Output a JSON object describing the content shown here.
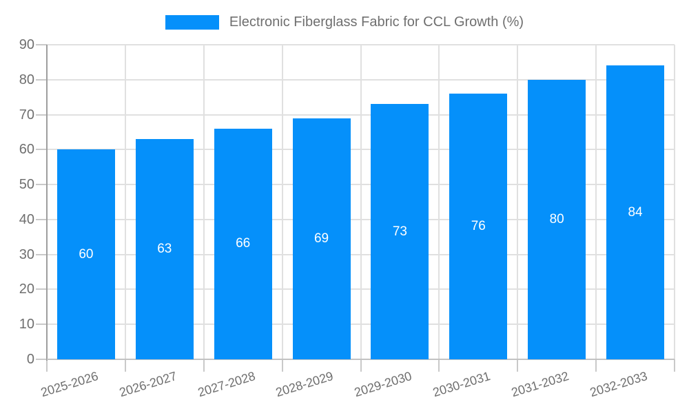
{
  "legend": {
    "label": "Electronic Fiberglass Fabric for CCL Growth (%)"
  },
  "chart_data": {
    "type": "bar",
    "title": "Electronic Fiberglass Fabric for CCL Growth (%)",
    "categories": [
      "2025-2026",
      "2026-2027",
      "2027-2028",
      "2028-2029",
      "2029-2030",
      "2030-2031",
      "2031-2032",
      "2032-2033"
    ],
    "values": [
      60,
      63,
      66,
      69,
      73,
      76,
      80,
      84
    ],
    "value_labels_position": "inside-center",
    "xlabel": "",
    "ylabel": "",
    "ylim": [
      0,
      90
    ],
    "yticks": [
      0,
      10,
      20,
      30,
      40,
      50,
      60,
      70,
      80,
      90
    ],
    "grid": true,
    "legend_position": "top-center",
    "colors": {
      "bar": "#0590fa",
      "value_label": "#ffffff",
      "y_axis": "#9e9e9e",
      "x_axis": "#c2c2c2",
      "tick": "#c9c9c9",
      "grid": "#e0e0e0",
      "text": "#6f6f6f"
    }
  }
}
